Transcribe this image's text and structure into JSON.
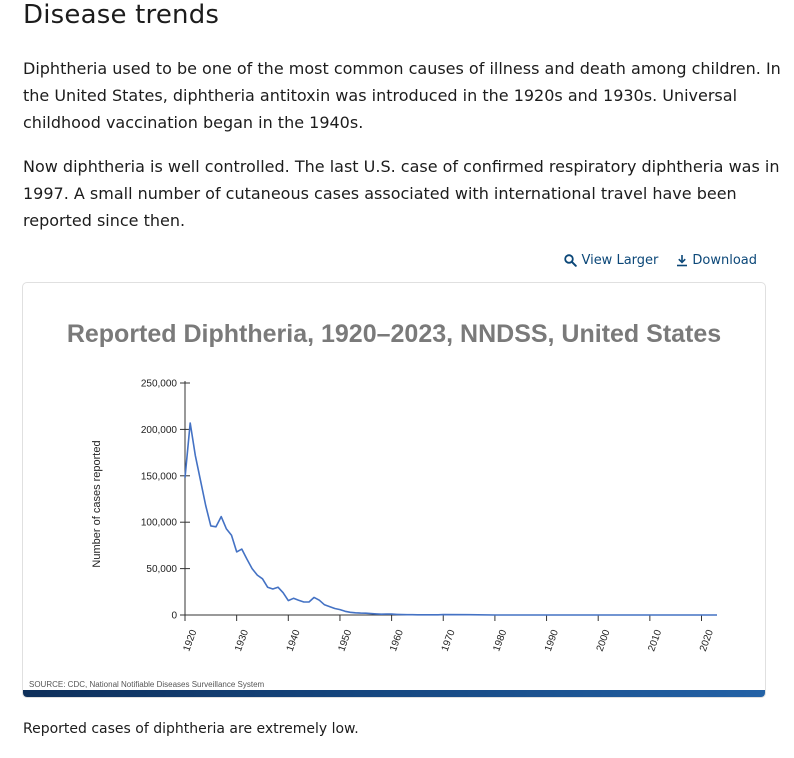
{
  "page": {
    "heading": "Disease trends",
    "paragraph1": "Diphtheria used to be one of the most common causes of illness and death among children. In the United States, diphtheria antitoxin was introduced in the 1920s and 1930s. Universal childhood vaccination began in the 1940s.",
    "paragraph2": "Now diphtheria is well controlled. The last U.S. case of confirmed respiratory diphtheria was in 1997. A small number of cutaneous cases associated with international travel have been reported since then.",
    "view_larger_label": "View Larger",
    "download_label": "Download",
    "caption": "Reported cases of diphtheria are extremely low.",
    "icons": {
      "view_larger": "magnifier-icon",
      "download": "download-icon"
    },
    "colors": {
      "link": "#0b4778",
      "line": "#4472c4",
      "title": "#7a7a7a",
      "bar": "#14437a"
    }
  },
  "chart_data": {
    "type": "line",
    "title": "Reported Diphtheria, 1920–2023, NNDSS, United States",
    "xlabel": "",
    "ylabel": "Number of cases reported",
    "source": "SOURCE: CDC, National Notifiable Diseases Surveillance System",
    "xlim": [
      1920,
      2023
    ],
    "ylim": [
      0,
      250000
    ],
    "yticks": [
      0,
      50000,
      100000,
      150000,
      200000,
      250000
    ],
    "ytick_labels": [
      "0",
      "50,000",
      "100,000",
      "150,000",
      "200,000",
      "250,000"
    ],
    "xticks": [
      1920,
      1930,
      1940,
      1950,
      1960,
      1970,
      1980,
      1990,
      2000,
      2010,
      2020
    ],
    "xtick_labels": [
      "1920",
      "1930",
      "1940",
      "1950",
      "1960",
      "1970",
      "1980",
      "1990",
      "2000",
      "2010",
      "2020"
    ],
    "grid": false,
    "series": [
      {
        "x": [
          1920,
          1921,
          1922,
          1923,
          1924,
          1925,
          1926,
          1927,
          1928,
          1929,
          1930,
          1931,
          1932,
          1933,
          1934,
          1935,
          1936,
          1937,
          1938,
          1939,
          1940,
          1941,
          1942,
          1943,
          1944,
          1945,
          1946,
          1947,
          1948,
          1949,
          1950,
          1951,
          1952,
          1953,
          1954,
          1955,
          1956,
          1957,
          1958,
          1959,
          1960,
          1961,
          1962,
          1963,
          1964,
          1965,
          1966,
          1967,
          1968,
          1969,
          1970,
          1975,
          1980,
          1985,
          1990,
          1995,
          2000,
          2005,
          2010,
          2015,
          2020,
          2023
        ],
        "y": [
          147991,
          206939,
          172000,
          145000,
          118000,
          96000,
          95000,
          106000,
          93000,
          86000,
          68000,
          71000,
          60000,
          50000,
          43000,
          39000,
          30000,
          28000,
          30000,
          24000,
          15536,
          18000,
          16000,
          14000,
          14000,
          19000,
          16000,
          11000,
          9000,
          7000,
          5796,
          4000,
          2900,
          2400,
          2000,
          1984,
          1500,
          1200,
          900,
          934,
          918,
          617,
          444,
          314,
          293,
          164,
          209,
          219,
          260,
          241,
          435,
          307,
          3,
          3,
          4,
          1,
          1,
          0,
          0,
          2,
          1,
          3
        ]
      }
    ]
  }
}
